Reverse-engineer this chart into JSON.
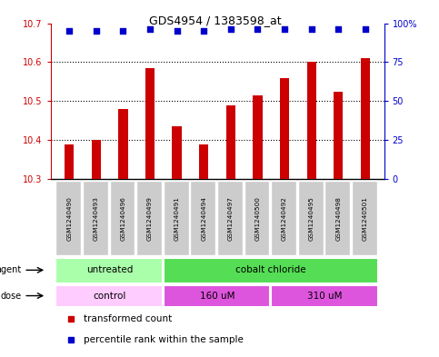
{
  "title": "GDS4954 / 1383598_at",
  "samples": [
    "GSM1240490",
    "GSM1240493",
    "GSM1240496",
    "GSM1240499",
    "GSM1240491",
    "GSM1240494",
    "GSM1240497",
    "GSM1240500",
    "GSM1240492",
    "GSM1240495",
    "GSM1240498",
    "GSM1240501"
  ],
  "bar_values": [
    10.39,
    10.4,
    10.48,
    10.585,
    10.435,
    10.39,
    10.49,
    10.515,
    10.56,
    10.6,
    10.525,
    10.61
  ],
  "percentile_values": [
    95,
    95,
    95,
    96,
    95,
    95,
    96,
    96,
    96,
    96,
    96,
    96
  ],
  "bar_color": "#cc0000",
  "percentile_color": "#0000cc",
  "ylim_left": [
    10.3,
    10.7
  ],
  "ylim_right": [
    0,
    100
  ],
  "yticks_left": [
    10.3,
    10.4,
    10.5,
    10.6,
    10.7
  ],
  "yticks_right": [
    0,
    25,
    50,
    75,
    100
  ],
  "ytick_labels_right": [
    "0",
    "25",
    "50",
    "75",
    "100%"
  ],
  "agent_labels": [
    {
      "text": "untreated",
      "start": 0,
      "end": 3,
      "color": "#aaffaa"
    },
    {
      "text": "cobalt chloride",
      "start": 4,
      "end": 11,
      "color": "#55dd55"
    }
  ],
  "dose_labels": [
    {
      "text": "control",
      "start": 0,
      "end": 3,
      "color": "#ffccff"
    },
    {
      "text": "160 uM",
      "start": 4,
      "end": 7,
      "color": "#dd55dd"
    },
    {
      "text": "310 uM",
      "start": 8,
      "end": 11,
      "color": "#dd55dd"
    }
  ],
  "legend_bar_label": "transformed count",
  "legend_dot_label": "percentile rank within the sample",
  "bar_bottom": 10.3,
  "sample_box_color": "#cccccc",
  "bar_width": 0.35
}
